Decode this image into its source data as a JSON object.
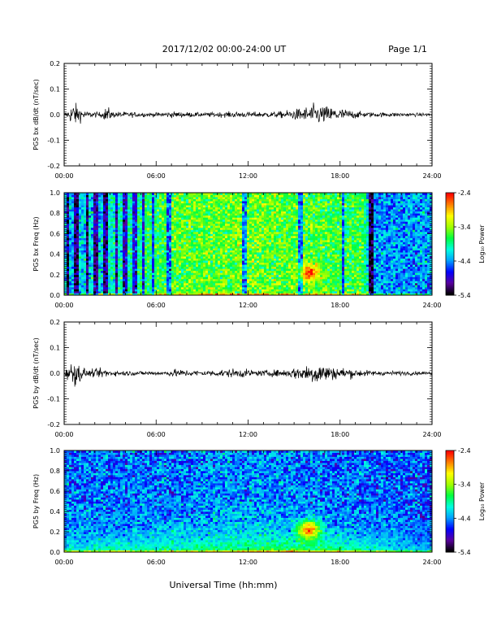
{
  "header": {
    "date_range": "2017/12/02  00:00-24:00 UT",
    "page": "Page 1/1"
  },
  "footer": {
    "xlabel": "Universal Time (hh:mm)"
  },
  "colors": {
    "trace": "#000000",
    "colorbar_stops": [
      "#000000",
      "#5a00a0",
      "#0000ff",
      "#00a0ff",
      "#00ffe0",
      "#00ff40",
      "#a0ff00",
      "#ffff00",
      "#ff8000",
      "#ff0000"
    ]
  },
  "chart_data": [
    {
      "id": "bx-dbdt",
      "type": "line",
      "ylabel": "PG5 bx dB/dt (nT/sec)",
      "ylim": [
        -0.2,
        0.2
      ],
      "yticks": [
        "0.2",
        "0.1",
        "0.0",
        "-0.1",
        "-0.2"
      ],
      "xlim": [
        0,
        24
      ],
      "xticks": [
        "00:00",
        "06:00",
        "12:00",
        "18:00",
        "24:00"
      ],
      "envelope": [
        {
          "t": 0.0,
          "amp": 0.006
        },
        {
          "t": 0.3,
          "amp": 0.02
        },
        {
          "t": 0.6,
          "amp": 0.05
        },
        {
          "t": 1.0,
          "amp": 0.03
        },
        {
          "t": 1.5,
          "amp": 0.012
        },
        {
          "t": 2.5,
          "amp": 0.01
        },
        {
          "t": 2.8,
          "amp": 0.035
        },
        {
          "t": 3.1,
          "amp": 0.012
        },
        {
          "t": 6.0,
          "amp": 0.008
        },
        {
          "t": 7.0,
          "amp": 0.012
        },
        {
          "t": 9.0,
          "amp": 0.008
        },
        {
          "t": 11.5,
          "amp": 0.012
        },
        {
          "t": 12.0,
          "amp": 0.01
        },
        {
          "t": 14.0,
          "amp": 0.012
        },
        {
          "t": 15.5,
          "amp": 0.025
        },
        {
          "t": 16.3,
          "amp": 0.04
        },
        {
          "t": 17.5,
          "amp": 0.03
        },
        {
          "t": 18.5,
          "amp": 0.02
        },
        {
          "t": 19.5,
          "amp": 0.01
        },
        {
          "t": 24.0,
          "amp": 0.006
        }
      ]
    },
    {
      "id": "bx-freq",
      "type": "heatmap",
      "ylabel": "PG5 bx Freq (Hz)",
      "ylim": [
        0.0,
        1.0
      ],
      "yticks": [
        "1.0",
        "0.8",
        "0.6",
        "0.4",
        "0.2",
        "0.0"
      ],
      "xlim": [
        0,
        24
      ],
      "xticks": [
        "00:00",
        "06:00",
        "12:00",
        "18:00",
        "24:00"
      ],
      "colorbar": {
        "label": "Log₁₀ Power",
        "ticks": [
          "-2.4",
          "-3.4",
          "-4.4",
          "-5.4"
        ],
        "range": [
          -5.4,
          -2.4
        ]
      },
      "background_level": [
        {
          "t": 0,
          "v": -4.3
        },
        {
          "t": 3,
          "v": -4.1
        },
        {
          "t": 7,
          "v": -3.6
        },
        {
          "t": 12,
          "v": -3.5
        },
        {
          "t": 19.5,
          "v": -3.7
        },
        {
          "t": 20,
          "v": -4.4
        },
        {
          "t": 24,
          "v": -4.4
        }
      ],
      "blue_stripes_t": [
        0.2,
        0.8,
        1.5,
        2.1,
        2.7,
        3.4,
        4.0,
        4.6,
        5.2,
        5.8,
        6.8,
        11.8,
        15.4,
        18.2,
        20.0
      ],
      "hot_spot": {
        "t": 16.0,
        "f": 0.22,
        "v": -2.6
      }
    },
    {
      "id": "by-dbdt",
      "type": "line",
      "ylabel": "PG5 by dB/dt (nT/sec)",
      "ylim": [
        -0.2,
        0.2
      ],
      "yticks": [
        "0.2",
        "0.1",
        "0.0",
        "-0.1",
        "-0.2"
      ],
      "xlim": [
        0,
        24
      ],
      "xticks": [
        "00:00",
        "06:00",
        "12:00",
        "18:00",
        "24:00"
      ],
      "envelope": [
        {
          "t": 0.0,
          "amp": 0.01
        },
        {
          "t": 0.3,
          "amp": 0.03
        },
        {
          "t": 0.6,
          "amp": 0.05
        },
        {
          "t": 1.0,
          "amp": 0.035
        },
        {
          "t": 1.5,
          "amp": 0.012
        },
        {
          "t": 2.7,
          "amp": 0.02
        },
        {
          "t": 3.1,
          "amp": 0.01
        },
        {
          "t": 6.5,
          "amp": 0.008
        },
        {
          "t": 7.2,
          "amp": 0.015
        },
        {
          "t": 9.0,
          "amp": 0.01
        },
        {
          "t": 11.5,
          "amp": 0.018
        },
        {
          "t": 12.5,
          "amp": 0.01
        },
        {
          "t": 14.5,
          "amp": 0.015
        },
        {
          "t": 16.0,
          "amp": 0.035
        },
        {
          "t": 16.5,
          "amp": 0.045
        },
        {
          "t": 17.5,
          "amp": 0.025
        },
        {
          "t": 18.5,
          "amp": 0.02
        },
        {
          "t": 20.0,
          "amp": 0.01
        },
        {
          "t": 24.0,
          "amp": 0.006
        }
      ]
    },
    {
      "id": "by-freq",
      "type": "heatmap",
      "ylabel": "PG5 by Freq (Hz)",
      "ylim": [
        0.0,
        1.0
      ],
      "yticks": [
        "1.0",
        "0.8",
        "0.6",
        "0.4",
        "0.2",
        "0.0"
      ],
      "xlim": [
        0,
        24
      ],
      "xticks": [
        "00:00",
        "06:00",
        "12:00",
        "18:00",
        "24:00"
      ],
      "colorbar": {
        "label": "Log₁₀ Power",
        "ticks": [
          "-2.4",
          "-3.4",
          "-4.4",
          "-5.4"
        ],
        "range": [
          -5.4,
          -2.4
        ]
      },
      "background_level": [
        {
          "t": 0,
          "v": -4.5
        },
        {
          "t": 6,
          "v": -4.5
        },
        {
          "t": 12,
          "v": -4.4
        },
        {
          "t": 24,
          "v": -4.6
        }
      ],
      "low_freq_band": [
        {
          "t": 0,
          "v": -4.0
        },
        {
          "t": 7,
          "v": -3.8
        },
        {
          "t": 14,
          "v": -3.5
        },
        {
          "t": 17,
          "v": -3.6
        },
        {
          "t": 21,
          "v": -4.0
        },
        {
          "t": 24,
          "v": -4.3
        }
      ],
      "hot_spot": {
        "t": 16.0,
        "f": 0.22,
        "v": -2.6
      }
    }
  ]
}
